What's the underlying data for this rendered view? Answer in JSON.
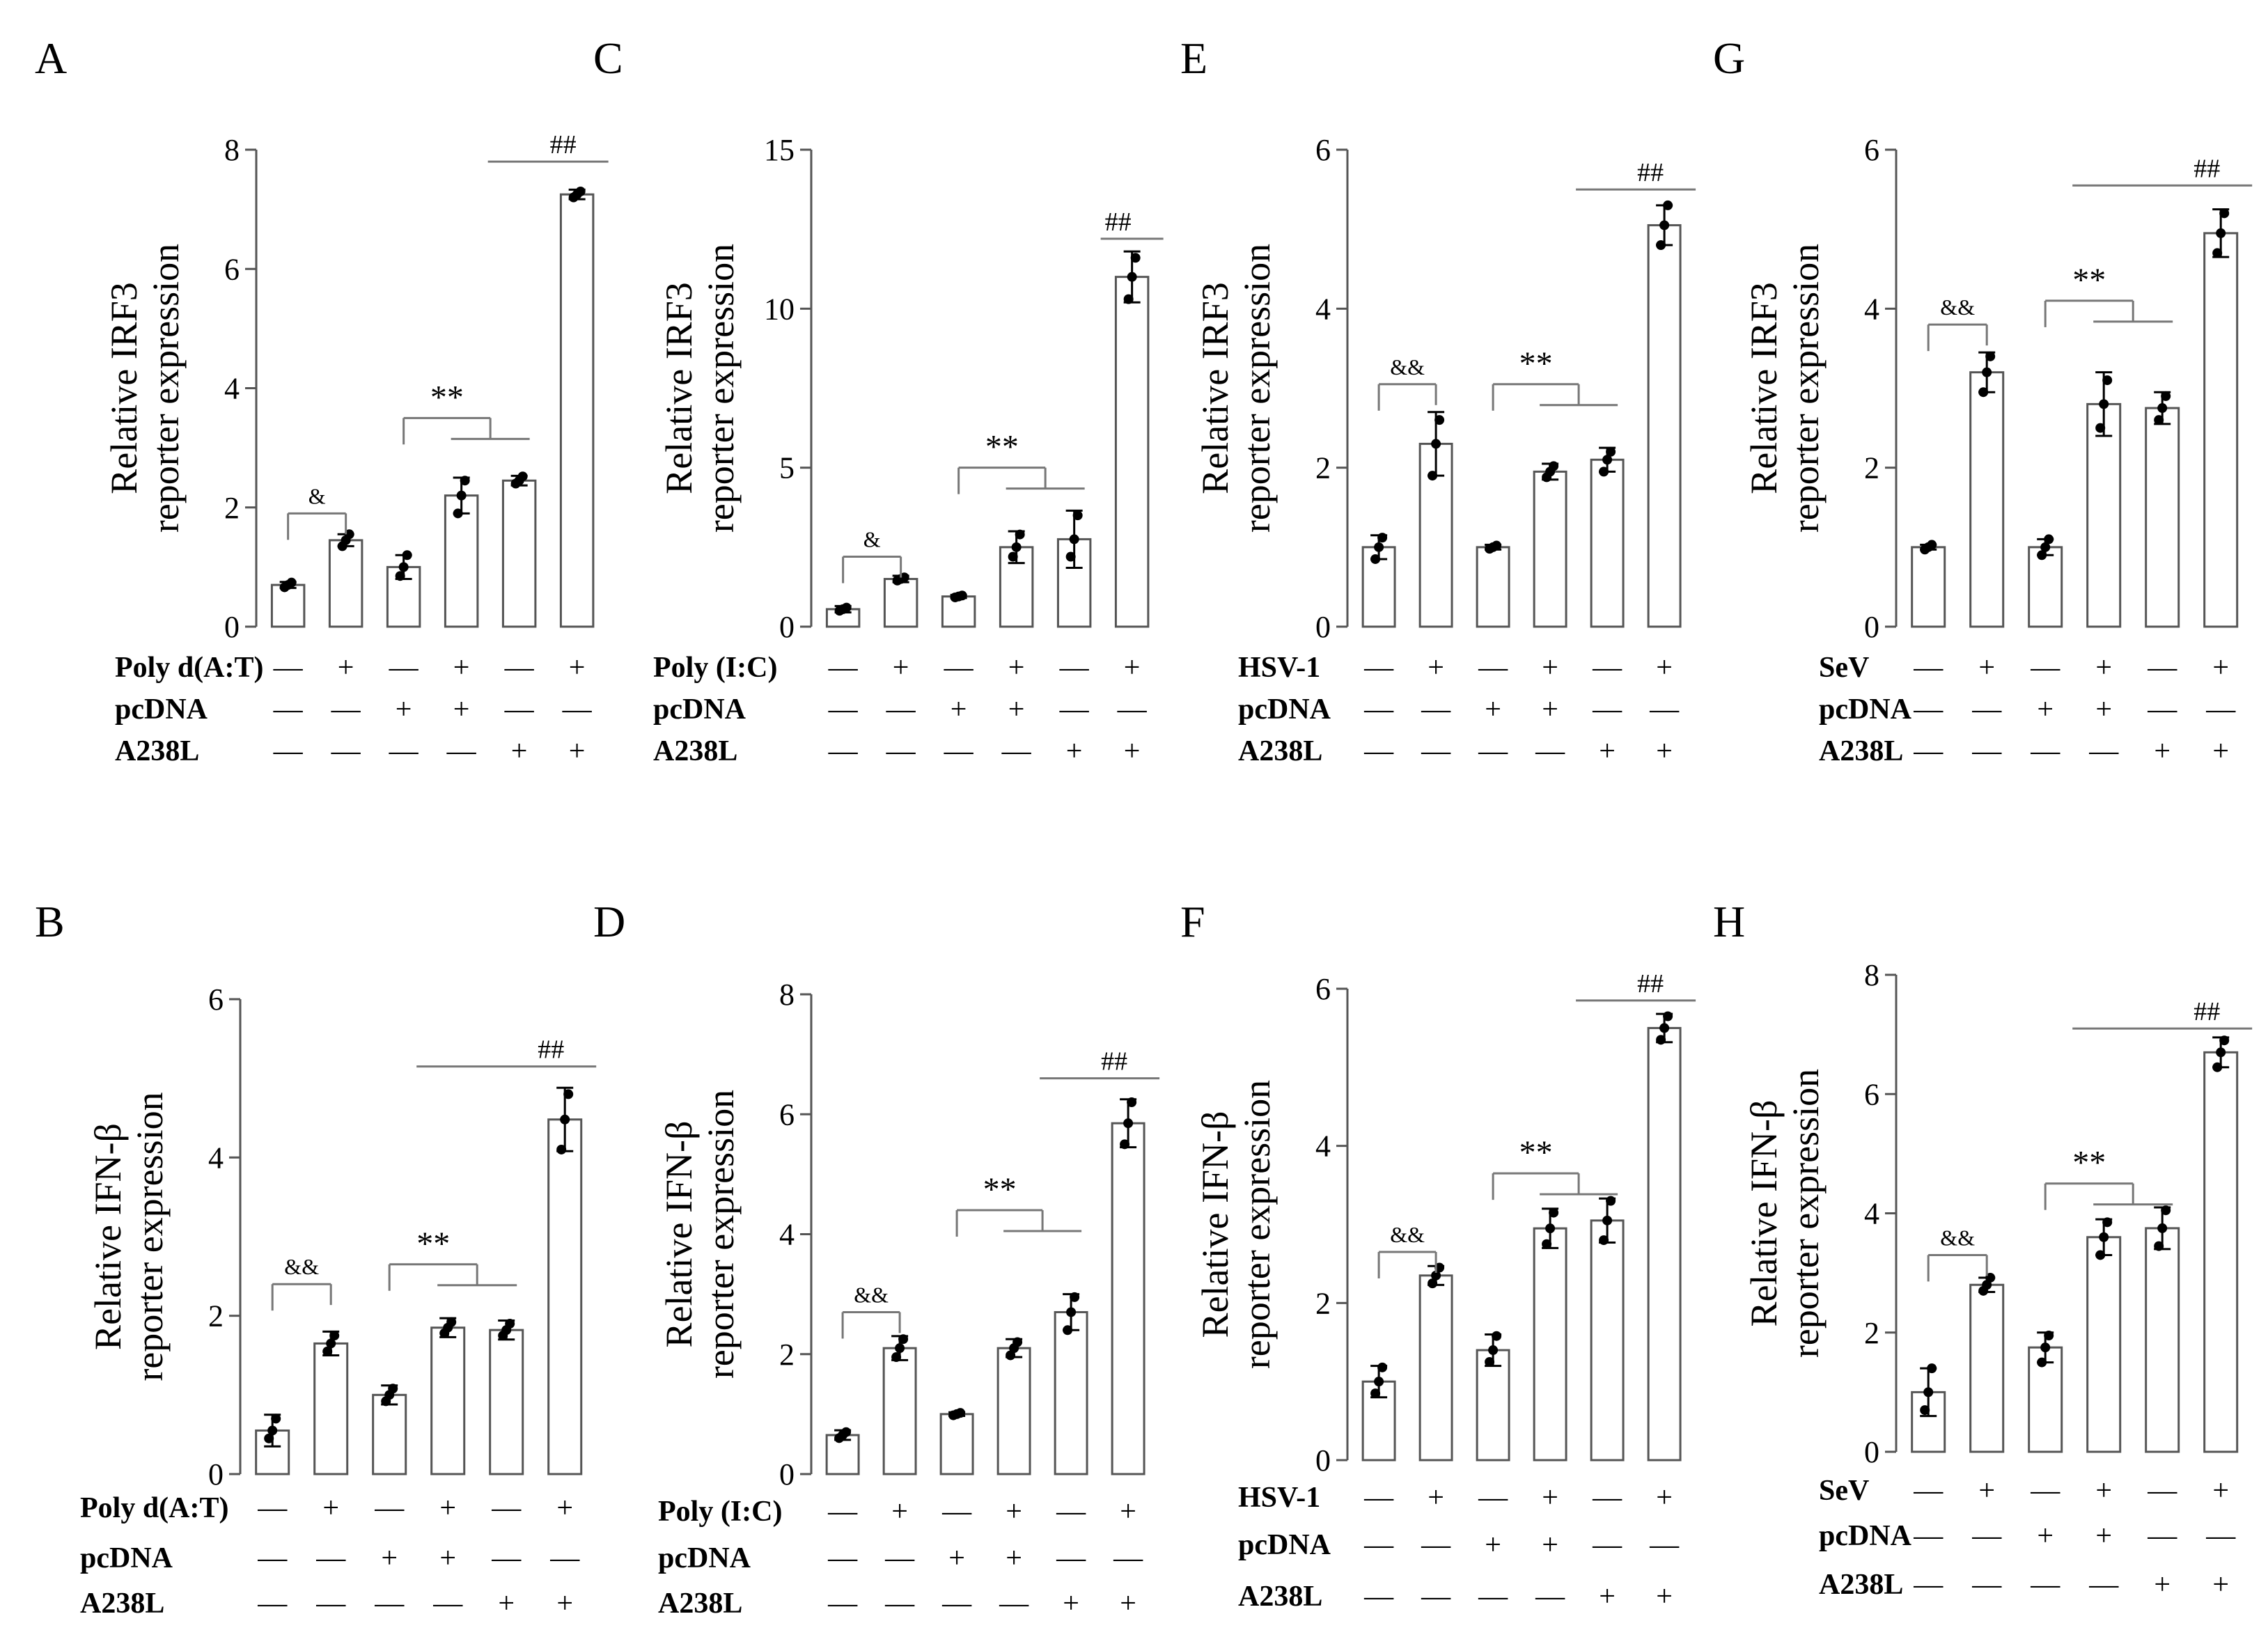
{
  "figure": {
    "type": "multi-panel bar chart",
    "colors": {
      "bar_fill": "#ffffff",
      "bar_stroke": "#555555",
      "axis": "#555555",
      "bracket": "#777777",
      "text": "#000000"
    }
  },
  "signs": {
    "plus": "+",
    "minus": "—"
  },
  "chart_data": [
    {
      "panel": "A",
      "type": "bar",
      "ylabel": [
        "Relative IRF3",
        "reporter expression"
      ],
      "ylim": [
        0,
        8
      ],
      "yticks": [
        0,
        2,
        4,
        6,
        8
      ],
      "values": [
        0.7,
        1.45,
        1.0,
        2.2,
        2.45,
        7.25
      ],
      "errors": [
        0.05,
        0.1,
        0.2,
        0.3,
        0.08,
        0.08
      ],
      "points": [
        [
          0.66,
          0.7,
          0.74
        ],
        [
          1.35,
          1.45,
          1.55
        ],
        [
          0.85,
          1.0,
          1.2
        ],
        [
          1.9,
          2.2,
          2.45
        ],
        [
          2.4,
          2.45,
          2.52
        ],
        [
          7.2,
          7.25,
          7.3
        ]
      ],
      "treatments": [
        {
          "label": "Poly d(A:T)",
          "signs": [
            "-",
            "+",
            "-",
            "+",
            "-",
            "+"
          ]
        },
        {
          "label": "pcDNA",
          "signs": [
            "-",
            "-",
            "+",
            "+",
            "-",
            "-"
          ]
        },
        {
          "label": "A238L",
          "signs": [
            "-",
            "-",
            "-",
            "-",
            "+",
            "+"
          ]
        }
      ],
      "annotations": [
        {
          "type": "bracket",
          "from": 0,
          "to": [
            1
          ],
          "y": 1.9,
          "label": "&"
        },
        {
          "type": "bracket",
          "from": 2,
          "to": [
            3,
            4
          ],
          "y": 3.5,
          "label": "**"
        },
        {
          "type": "line",
          "from": 4,
          "to": 5,
          "y": 7.8,
          "label": "##"
        }
      ]
    },
    {
      "panel": "B",
      "type": "bar",
      "ylabel": [
        "Relative IFN-β",
        "reporter expression"
      ],
      "ylim": [
        0,
        6
      ],
      "yticks": [
        0,
        2,
        4,
        6
      ],
      "values": [
        0.55,
        1.65,
        1.0,
        1.85,
        1.82,
        4.48
      ],
      "errors": [
        0.2,
        0.15,
        0.12,
        0.12,
        0.12,
        0.4
      ],
      "points": [
        [
          0.45,
          0.55,
          0.7
        ],
        [
          1.55,
          1.65,
          1.75
        ],
        [
          0.92,
          1.0,
          1.08
        ],
        [
          1.78,
          1.85,
          1.92
        ],
        [
          1.75,
          1.82,
          1.9
        ],
        [
          4.1,
          4.48,
          4.8
        ]
      ],
      "treatments": [
        {
          "label": "Poly d(A:T)",
          "signs": [
            "-",
            "+",
            "-",
            "+",
            "-",
            "+"
          ]
        },
        {
          "label": "pcDNA",
          "signs": [
            "-",
            "-",
            "+",
            "+",
            "-",
            "-"
          ]
        },
        {
          "label": "A238L",
          "signs": [
            "-",
            "-",
            "-",
            "-",
            "+",
            "+"
          ]
        }
      ],
      "annotations": [
        {
          "type": "bracket",
          "from": 0,
          "to": [
            1
          ],
          "y": 2.4,
          "label": "&&"
        },
        {
          "type": "bracket",
          "from": 2,
          "to": [
            3,
            4
          ],
          "y": 2.65,
          "label": "**"
        },
        {
          "type": "line",
          "from": 3,
          "to": 5,
          "y": 5.15,
          "label": "##"
        }
      ]
    },
    {
      "panel": "C",
      "type": "bar",
      "ylabel": [
        "Relative IRF3",
        "reporter expression"
      ],
      "ylim": [
        0,
        15
      ],
      "yticks": [
        0,
        5,
        10,
        15
      ],
      "values": [
        0.55,
        1.5,
        0.95,
        2.5,
        2.75,
        11.0
      ],
      "errors": [
        0.1,
        0.1,
        0.05,
        0.5,
        0.9,
        0.8
      ],
      "points": [
        [
          0.5,
          0.55,
          0.6
        ],
        [
          1.45,
          1.5,
          1.55
        ],
        [
          0.92,
          0.95,
          0.98
        ],
        [
          2.2,
          2.5,
          2.9
        ],
        [
          2.2,
          2.75,
          3.5
        ],
        [
          10.3,
          11.0,
          11.6
        ]
      ],
      "treatments": [
        {
          "label": "Poly (I:C)",
          "signs": [
            "-",
            "+",
            "-",
            "+",
            "-",
            "+"
          ]
        },
        {
          "label": "pcDNA",
          "signs": [
            "-",
            "-",
            "+",
            "+",
            "-",
            "-"
          ]
        },
        {
          "label": "A238L",
          "signs": [
            "-",
            "-",
            "-",
            "-",
            "+",
            "+"
          ]
        }
      ],
      "annotations": [
        {
          "type": "bracket",
          "from": 0,
          "to": [
            1
          ],
          "y": 2.2,
          "label": "&"
        },
        {
          "type": "bracket",
          "from": 2,
          "to": [
            3,
            4
          ],
          "y": 5.0,
          "label": "**"
        },
        {
          "type": "line",
          "from": 5,
          "to": 5,
          "y": 12.2,
          "label": "##"
        }
      ]
    },
    {
      "panel": "D",
      "type": "bar",
      "ylabel": [
        "Relative IFN-β",
        "reporter expression"
      ],
      "ylim": [
        0,
        8
      ],
      "yticks": [
        0,
        2,
        4,
        6,
        8
      ],
      "values": [
        0.65,
        2.1,
        1.0,
        2.1,
        2.7,
        5.85
      ],
      "errors": [
        0.08,
        0.2,
        0.03,
        0.15,
        0.3,
        0.4
      ],
      "points": [
        [
          0.6,
          0.65,
          0.7
        ],
        [
          1.95,
          2.1,
          2.25
        ],
        [
          0.98,
          1.0,
          1.02
        ],
        [
          1.98,
          2.1,
          2.2
        ],
        [
          2.4,
          2.7,
          2.95
        ],
        [
          5.5,
          5.85,
          6.2
        ]
      ],
      "treatments": [
        {
          "label": "Poly (I:C)",
          "signs": [
            "-",
            "+",
            "-",
            "+",
            "-",
            "+"
          ]
        },
        {
          "label": "pcDNA",
          "signs": [
            "-",
            "-",
            "+",
            "+",
            "-",
            "-"
          ]
        },
        {
          "label": "A238L",
          "signs": [
            "-",
            "-",
            "-",
            "-",
            "+",
            "+"
          ]
        }
      ],
      "annotations": [
        {
          "type": "bracket",
          "from": 0,
          "to": [
            1
          ],
          "y": 2.7,
          "label": "&&"
        },
        {
          "type": "bracket",
          "from": 2,
          "to": [
            3,
            4
          ],
          "y": 4.4,
          "label": "**"
        },
        {
          "type": "line",
          "from": 4,
          "to": 5,
          "y": 6.6,
          "label": "##"
        }
      ]
    },
    {
      "panel": "E",
      "type": "bar",
      "ylabel": [
        "Relative IRF3",
        "reporter expression"
      ],
      "ylim": [
        0,
        6
      ],
      "yticks": [
        0,
        2,
        4,
        6
      ],
      "values": [
        1.0,
        2.3,
        1.0,
        1.95,
        2.1,
        5.05
      ],
      "errors": [
        0.15,
        0.4,
        0.03,
        0.1,
        0.15,
        0.25
      ],
      "points": [
        [
          0.85,
          1.0,
          1.12
        ],
        [
          1.9,
          2.3,
          2.6
        ],
        [
          0.98,
          1.0,
          1.02
        ],
        [
          1.88,
          1.95,
          2.02
        ],
        [
          1.95,
          2.1,
          2.2
        ],
        [
          4.8,
          5.05,
          5.3
        ]
      ],
      "treatments": [
        {
          "label": "HSV-1",
          "signs": [
            "-",
            "+",
            "-",
            "+",
            "-",
            "+"
          ]
        },
        {
          "label": "pcDNA",
          "signs": [
            "-",
            "-",
            "+",
            "+",
            "-",
            "-"
          ]
        },
        {
          "label": "A238L",
          "signs": [
            "-",
            "-",
            "-",
            "-",
            "+",
            "+"
          ]
        }
      ],
      "annotations": [
        {
          "type": "bracket",
          "from": 0,
          "to": [
            1
          ],
          "y": 3.05,
          "label": "&&"
        },
        {
          "type": "bracket",
          "from": 2,
          "to": [
            3,
            4
          ],
          "y": 3.05,
          "label": "**"
        },
        {
          "type": "line",
          "from": 4,
          "to": 5,
          "y": 5.5,
          "label": "##"
        }
      ]
    },
    {
      "panel": "F",
      "type": "bar",
      "ylabel": [
        "Relative IFN-β",
        "reporter expression"
      ],
      "ylim": [
        0,
        6
      ],
      "yticks": [
        0,
        2,
        4,
        6
      ],
      "values": [
        1.0,
        2.35,
        1.4,
        2.95,
        3.05,
        5.5
      ],
      "errors": [
        0.2,
        0.12,
        0.2,
        0.25,
        0.28,
        0.18
      ],
      "points": [
        [
          0.85,
          1.0,
          1.18
        ],
        [
          2.25,
          2.35,
          2.45
        ],
        [
          1.25,
          1.4,
          1.58
        ],
        [
          2.75,
          2.95,
          3.15
        ],
        [
          2.8,
          3.05,
          3.3
        ],
        [
          5.35,
          5.5,
          5.65
        ]
      ],
      "treatments": [
        {
          "label": "HSV-1",
          "signs": [
            "-",
            "+",
            "-",
            "+",
            "-",
            "+"
          ]
        },
        {
          "label": "pcDNA",
          "signs": [
            "-",
            "-",
            "+",
            "+",
            "-",
            "-"
          ]
        },
        {
          "label": "A238L",
          "signs": [
            "-",
            "-",
            "-",
            "-",
            "+",
            "+"
          ]
        }
      ],
      "annotations": [
        {
          "type": "bracket",
          "from": 0,
          "to": [
            1
          ],
          "y": 2.65,
          "label": "&&"
        },
        {
          "type": "bracket",
          "from": 2,
          "to": [
            3,
            4
          ],
          "y": 3.65,
          "label": "**"
        },
        {
          "type": "line",
          "from": 4,
          "to": 5,
          "y": 5.85,
          "label": "##"
        }
      ]
    },
    {
      "panel": "G",
      "type": "bar",
      "ylabel": [
        "Relative IRF3",
        "reporter expression"
      ],
      "ylim": [
        0,
        6
      ],
      "yticks": [
        0,
        2,
        4,
        6
      ],
      "values": [
        1.0,
        3.2,
        1.0,
        2.8,
        2.75,
        4.95
      ],
      "errors": [
        0.03,
        0.25,
        0.1,
        0.4,
        0.2,
        0.3
      ],
      "points": [
        [
          0.97,
          1.0,
          1.03
        ],
        [
          2.95,
          3.2,
          3.4
        ],
        [
          0.9,
          1.0,
          1.1
        ],
        [
          2.5,
          2.8,
          3.1
        ],
        [
          2.6,
          2.75,
          2.9
        ],
        [
          4.7,
          4.95,
          5.2
        ]
      ],
      "treatments": [
        {
          "label": "SeV",
          "signs": [
            "-",
            "+",
            "-",
            "+",
            "-",
            "+"
          ]
        },
        {
          "label": "pcDNA",
          "signs": [
            "-",
            "-",
            "+",
            "+",
            "-",
            "-"
          ]
        },
        {
          "label": "A238L",
          "signs": [
            "-",
            "-",
            "-",
            "-",
            "+",
            "+"
          ]
        }
      ],
      "annotations": [
        {
          "type": "bracket",
          "from": 0,
          "to": [
            1
          ],
          "y": 3.8,
          "label": "&&"
        },
        {
          "type": "bracket",
          "from": 2,
          "to": [
            3,
            4
          ],
          "y": 4.1,
          "label": "**"
        },
        {
          "type": "line",
          "from": 3,
          "to": 5,
          "y": 5.55,
          "label": "##"
        }
      ]
    },
    {
      "panel": "H",
      "type": "bar",
      "ylabel": [
        "Relative IFN-β",
        "reporter expression"
      ],
      "ylim": [
        0,
        8
      ],
      "yticks": [
        0,
        2,
        4,
        6,
        8
      ],
      "values": [
        1.0,
        2.8,
        1.75,
        3.6,
        3.75,
        6.7
      ],
      "errors": [
        0.4,
        0.12,
        0.25,
        0.3,
        0.35,
        0.25
      ],
      "points": [
        [
          0.7,
          1.0,
          1.4
        ],
        [
          2.7,
          2.8,
          2.92
        ],
        [
          1.5,
          1.75,
          1.95
        ],
        [
          3.3,
          3.6,
          3.85
        ],
        [
          3.45,
          3.75,
          4.05
        ],
        [
          6.45,
          6.7,
          6.9
        ]
      ],
      "treatments": [
        {
          "label": "SeV",
          "signs": [
            "-",
            "+",
            "-",
            "+",
            "-",
            "+"
          ]
        },
        {
          "label": "pcDNA",
          "signs": [
            "-",
            "-",
            "+",
            "+",
            "-",
            "-"
          ]
        },
        {
          "label": "A238L",
          "signs": [
            "-",
            "-",
            "-",
            "-",
            "+",
            "+"
          ]
        }
      ],
      "annotations": [
        {
          "type": "bracket",
          "from": 0,
          "to": [
            1
          ],
          "y": 3.3,
          "label": "&&"
        },
        {
          "type": "bracket",
          "from": 2,
          "to": [
            3,
            4
          ],
          "y": 4.5,
          "label": "**"
        },
        {
          "type": "line",
          "from": 3,
          "to": 5,
          "y": 7.1,
          "label": "##"
        }
      ]
    }
  ]
}
